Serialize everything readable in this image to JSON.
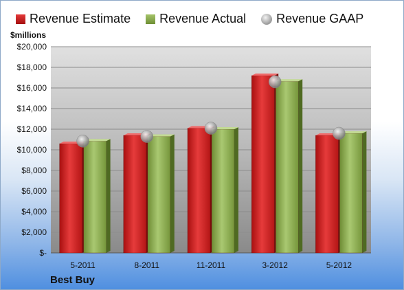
{
  "legend": {
    "estimate": "Revenue Estimate",
    "actual": "Revenue Actual",
    "gaap": "Revenue GAAP"
  },
  "unit_label": "$millions",
  "company": "Best Buy",
  "colors": {
    "estimate": "#cc1f1f",
    "actual": "#8aab4f",
    "gaap": "#b5b5b5"
  },
  "chart_data": {
    "type": "bar",
    "categories": [
      "5-2011",
      "8-2011",
      "11-2011",
      "3-2012",
      "5-2012"
    ],
    "series": [
      {
        "name": "Revenue Estimate",
        "values": [
          10600,
          11400,
          12100,
          17200,
          11400
        ]
      },
      {
        "name": "Revenue Actual",
        "values": [
          10850,
          11300,
          12000,
          16650,
          11600
        ]
      },
      {
        "name": "Revenue GAAP",
        "marker": "sphere",
        "values": [
          10850,
          11300,
          12100,
          16600,
          11600
        ]
      }
    ],
    "ylim": [
      0,
      20000
    ],
    "yticks": [
      0,
      2000,
      4000,
      6000,
      8000,
      10000,
      12000,
      14000,
      16000,
      18000,
      20000
    ],
    "ytick_labels": [
      "$-",
      "$2,000",
      "$4,000",
      "$6,000",
      "$8,000",
      "$10,000",
      "$12,000",
      "$14,000",
      "$16,000",
      "$18,000",
      "$20,000"
    ],
    "grid": true,
    "legend_position": "top"
  }
}
